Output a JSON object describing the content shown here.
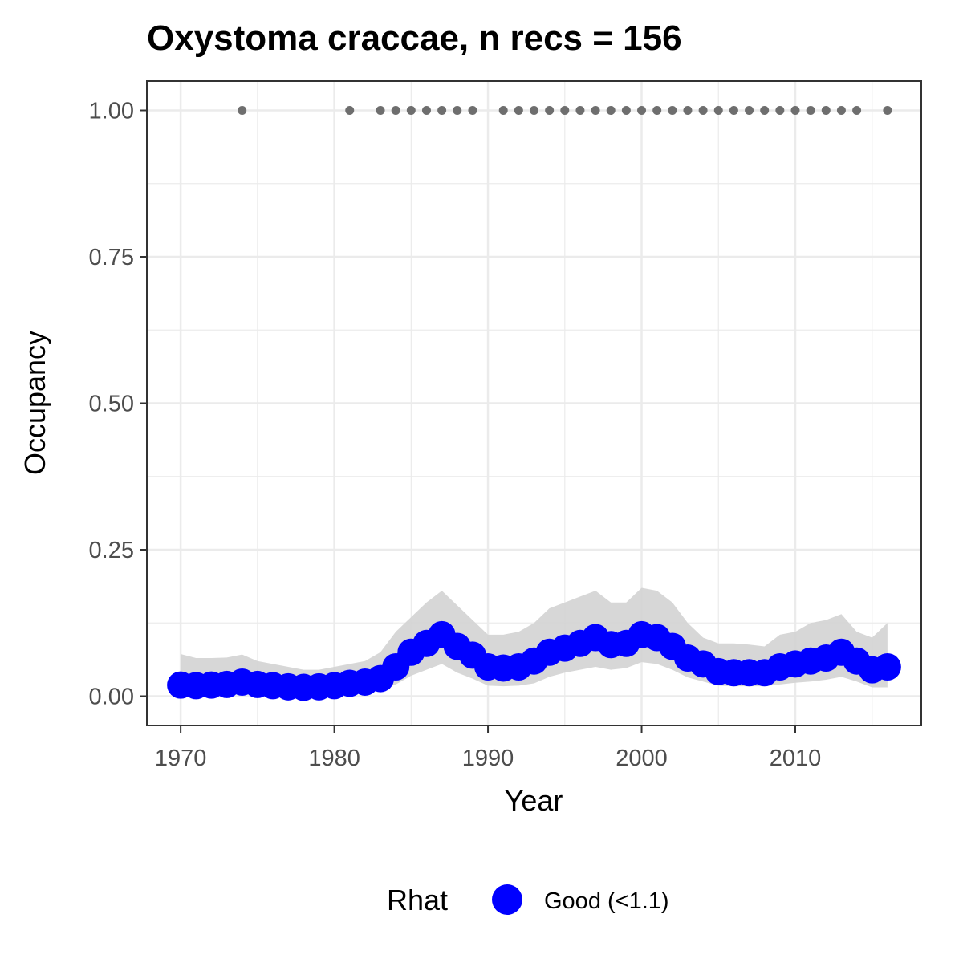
{
  "chart_data": {
    "type": "line",
    "title": "Oxystoma craccae, n recs = 156",
    "xlabel": "Year",
    "ylabel": "Occupancy",
    "xlim": [
      1967.8,
      2018.2
    ],
    "ylim": [
      -0.05,
      1.05
    ],
    "x_ticks": [
      1970,
      1980,
      1990,
      2000,
      2010
    ],
    "x_tick_labels": [
      "1970",
      "1980",
      "1990",
      "2000",
      "2010"
    ],
    "y_ticks": [
      0,
      0.25,
      0.5,
      0.75,
      1.0
    ],
    "y_tick_labels": [
      "0.00",
      "0.25",
      "0.50",
      "0.75",
      "1.00"
    ],
    "grid": true,
    "legend": {
      "title": "Rhat",
      "position": "bottom",
      "entries": [
        {
          "label": "Good (<1.1)",
          "color": "#0000ff"
        }
      ]
    },
    "colors": {
      "estimate": "#0000ff",
      "ribbon": "#d3d3d3",
      "records": "#6e6e6e",
      "panel_border": "#333333",
      "grid": "#ebebeb"
    },
    "series": [
      {
        "x": [
          1970,
          1971,
          1972,
          1973,
          1974,
          1975,
          1976,
          1977,
          1978,
          1979,
          1980,
          1981,
          1982,
          1983,
          1984,
          1985,
          1986,
          1987,
          1988,
          1989,
          1990,
          1991,
          1992,
          1993,
          1994,
          1995,
          1996,
          1997,
          1998,
          1999,
          2000,
          2001,
          2002,
          2003,
          2004,
          2005,
          2006,
          2007,
          2008,
          2009,
          2010,
          2011,
          2012,
          2013,
          2014,
          2015,
          2016
        ],
        "y": [
          0.019,
          0.018,
          0.019,
          0.02,
          0.024,
          0.02,
          0.018,
          0.016,
          0.015,
          0.016,
          0.018,
          0.022,
          0.024,
          0.03,
          0.05,
          0.075,
          0.09,
          0.105,
          0.085,
          0.07,
          0.05,
          0.048,
          0.05,
          0.06,
          0.075,
          0.082,
          0.09,
          0.1,
          0.088,
          0.09,
          0.105,
          0.1,
          0.085,
          0.065,
          0.055,
          0.042,
          0.04,
          0.04,
          0.04,
          0.05,
          0.055,
          0.06,
          0.065,
          0.075,
          0.06,
          0.045,
          0.05
        ],
        "lower": [
          0.005,
          0.005,
          0.005,
          0.005,
          0.007,
          0.006,
          0.005,
          0.004,
          0.004,
          0.004,
          0.005,
          0.006,
          0.007,
          0.01,
          0.02,
          0.035,
          0.045,
          0.055,
          0.04,
          0.03,
          0.018,
          0.017,
          0.018,
          0.022,
          0.033,
          0.04,
          0.045,
          0.05,
          0.045,
          0.048,
          0.058,
          0.055,
          0.045,
          0.032,
          0.025,
          0.018,
          0.017,
          0.017,
          0.017,
          0.02,
          0.023,
          0.025,
          0.028,
          0.033,
          0.025,
          0.015,
          0.015
        ],
        "upper": [
          0.072,
          0.065,
          0.065,
          0.066,
          0.071,
          0.06,
          0.055,
          0.05,
          0.045,
          0.045,
          0.05,
          0.055,
          0.06,
          0.075,
          0.11,
          0.135,
          0.16,
          0.18,
          0.155,
          0.13,
          0.105,
          0.105,
          0.11,
          0.125,
          0.15,
          0.16,
          0.17,
          0.18,
          0.16,
          0.16,
          0.185,
          0.18,
          0.16,
          0.125,
          0.1,
          0.09,
          0.09,
          0.088,
          0.085,
          0.105,
          0.11,
          0.125,
          0.13,
          0.14,
          0.11,
          0.1,
          0.125
        ]
      }
    ],
    "records": {
      "y": 1.0,
      "years": [
        1974,
        1981,
        1983,
        1984,
        1985,
        1986,
        1987,
        1988,
        1989,
        1991,
        1992,
        1993,
        1994,
        1995,
        1996,
        1997,
        1998,
        1999,
        2000,
        2001,
        2002,
        2003,
        2004,
        2005,
        2006,
        2007,
        2008,
        2009,
        2010,
        2011,
        2012,
        2013,
        2014,
        2016
      ]
    }
  }
}
